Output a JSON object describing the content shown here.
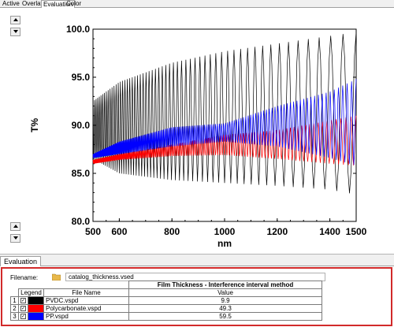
{
  "tabs": [
    "Active",
    "Overlay",
    "Evaluation",
    "Color"
  ],
  "active_tab": "Evaluation",
  "chart_data": {
    "type": "line",
    "xlabel": "nm",
    "ylabel": "T%",
    "xlim": [
      500,
      1500
    ],
    "ylim": [
      80,
      100
    ],
    "x_ticks": [
      "500",
      "600",
      "800",
      "1000",
      "1200",
      "1400",
      "1500"
    ],
    "y_ticks": [
      "80.0",
      "85.0",
      "90.0",
      "95.0",
      "100.0"
    ],
    "series": [
      {
        "file": "PVDC.vspd",
        "color": "#000000",
        "envelope_upper": [
          [
            500,
            92.5
          ],
          [
            600,
            94.5
          ],
          [
            800,
            96.5
          ],
          [
            1000,
            97.7
          ],
          [
            1200,
            98.5
          ],
          [
            1400,
            99.3
          ],
          [
            1500,
            99.7
          ]
        ],
        "envelope_lower": [
          [
            500,
            86.5
          ],
          [
            600,
            85.0
          ],
          [
            800,
            84.3
          ],
          [
            1000,
            84.0
          ],
          [
            1200,
            83.7
          ],
          [
            1400,
            83.3
          ],
          [
            1500,
            82.8
          ]
        ],
        "fringe_count": 58
      },
      {
        "file": "Polycarbonate.vspd",
        "color": "#ff0000",
        "envelope_upper": [
          [
            500,
            86.4
          ],
          [
            600,
            87.0
          ],
          [
            800,
            88.0
          ],
          [
            1000,
            89.0
          ],
          [
            1200,
            89.5
          ],
          [
            1400,
            90.5
          ],
          [
            1500,
            91.0
          ]
        ],
        "envelope_lower": [
          [
            500,
            86.0
          ],
          [
            600,
            86.4
          ],
          [
            800,
            86.8
          ],
          [
            1000,
            86.9
          ],
          [
            1200,
            86.5
          ],
          [
            1400,
            86.0
          ],
          [
            1500,
            85.8
          ]
        ],
        "fringe_count": 150
      },
      {
        "file": "PP.vspd",
        "color": "#0000ff",
        "envelope_upper": [
          [
            500,
            87.0
          ],
          [
            600,
            88.3
          ],
          [
            800,
            89.8
          ],
          [
            1000,
            90.2
          ],
          [
            1200,
            92.0
          ],
          [
            1400,
            93.5
          ],
          [
            1500,
            94.8
          ]
        ],
        "envelope_lower": [
          [
            500,
            86.6
          ],
          [
            600,
            87.0
          ],
          [
            800,
            87.8
          ],
          [
            1000,
            88.3
          ],
          [
            1200,
            87.8
          ],
          [
            1400,
            86.6
          ],
          [
            1500,
            85.8
          ]
        ],
        "fringe_count": 170
      }
    ]
  },
  "evaluation": {
    "tab_label": "Evaluation",
    "filename_label": "Filename:",
    "filename": "catalog_thickness.vsed",
    "group_header": "Film Thickness - Interference interval method",
    "columns": {
      "legend": "Legend",
      "file": "File Name",
      "value": "Value"
    },
    "rows": [
      {
        "n": "1",
        "checked": true,
        "color": "#000000",
        "file": "PVDC.vspd",
        "value": "9.9"
      },
      {
        "n": "2",
        "checked": true,
        "color": "#ff0000",
        "file": "Polycarbonate.vspd",
        "value": "49.3"
      },
      {
        "n": "3",
        "checked": true,
        "color": "#0000ff",
        "file": "PP.vspd",
        "value": "59.5"
      }
    ]
  }
}
